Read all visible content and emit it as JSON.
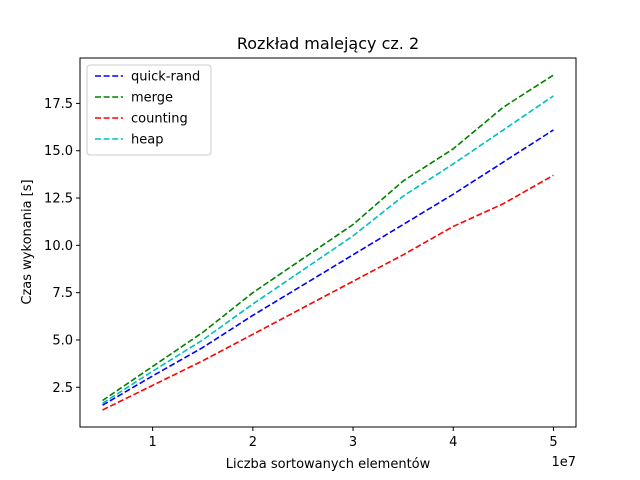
{
  "chart_data": {
    "type": "line",
    "title": "Rozkład malejący cz. 2",
    "xlabel": "Liczba sortowanych elementów",
    "ylabel": "Czas wykonania [s]",
    "x_offset_label": "1e7",
    "x_scale": 10000000,
    "xlim": [
      2750000,
      52250000
    ],
    "ylim": [
      0.4,
      19.9
    ],
    "x_ticks": [
      10000000,
      20000000,
      30000000,
      40000000,
      50000000
    ],
    "x_tick_labels": [
      "1",
      "2",
      "3",
      "4",
      "5"
    ],
    "y_ticks": [
      2.5,
      5.0,
      7.5,
      10.0,
      12.5,
      15.0,
      17.5
    ],
    "y_tick_labels": [
      "2.5",
      "5.0",
      "7.5",
      "10.0",
      "12.5",
      "15.0",
      "17.5"
    ],
    "grid": false,
    "legend_position": "top-left",
    "x": [
      5000000,
      10000000,
      15000000,
      20000000,
      25000000,
      30000000,
      35000000,
      40000000,
      45000000,
      50000000
    ],
    "series": [
      {
        "name": "quick-rand",
        "color": "#0000ff",
        "values": [
          1.55,
          3.1,
          4.6,
          6.3,
          7.9,
          9.5,
          11.1,
          12.7,
          14.4,
          16.1
        ]
      },
      {
        "name": "merge",
        "color": "#008000",
        "values": [
          1.8,
          3.6,
          5.4,
          7.5,
          9.3,
          11.1,
          13.4,
          15.1,
          17.3,
          19.0
        ]
      },
      {
        "name": "counting",
        "color": "#ff0000",
        "values": [
          1.3,
          2.6,
          3.9,
          5.3,
          6.7,
          8.1,
          9.5,
          11.0,
          12.2,
          13.7
        ]
      },
      {
        "name": "heap",
        "color": "#00bfbf",
        "values": [
          1.65,
          3.35,
          5.0,
          6.9,
          8.7,
          10.5,
          12.6,
          14.3,
          16.1,
          17.9
        ]
      }
    ]
  }
}
